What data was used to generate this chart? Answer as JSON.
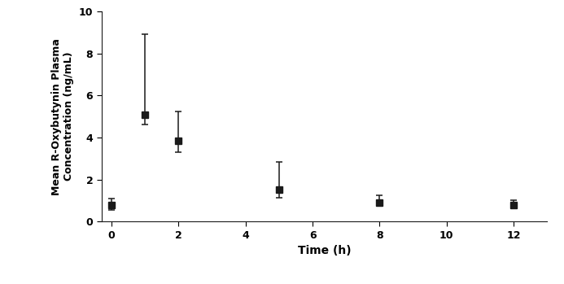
{
  "x": [
    0,
    1,
    2,
    5,
    8,
    12
  ],
  "y": [
    0.8,
    5.1,
    3.85,
    1.5,
    0.9,
    0.78
  ],
  "yerr_upper": [
    0.3,
    3.8,
    1.4,
    1.35,
    0.35,
    0.25
  ],
  "yerr_lower": [
    0.25,
    0.5,
    0.55,
    0.35,
    0.12,
    0.12
  ],
  "xlabel": "Time (h)",
  "ylabel": "Mean R-Oxybutynin Plasma\nConcentration (ng/mL)",
  "xlim": [
    -0.3,
    13.0
  ],
  "ylim": [
    0,
    10
  ],
  "xticks": [
    0,
    2,
    4,
    6,
    8,
    10,
    12
  ],
  "yticks": [
    0,
    2,
    4,
    6,
    8,
    10
  ],
  "line_color": "#1a1a1a",
  "marker": "s",
  "marker_size": 6,
  "marker_color": "#1a1a1a",
  "capsize": 3,
  "linewidth": 1.3,
  "elinewidth": 1.1,
  "capthick": 1.1,
  "background_color": "#ffffff",
  "xlabel_fontsize": 10,
  "ylabel_fontsize": 9,
  "tick_labelsize": 9
}
